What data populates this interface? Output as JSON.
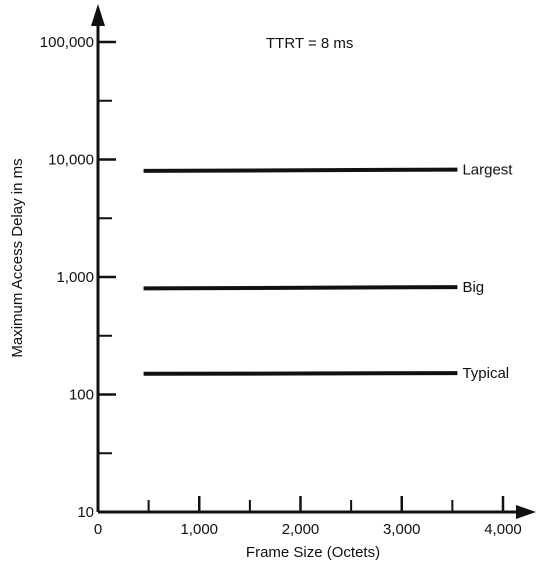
{
  "chart_data": {
    "type": "line",
    "title": "",
    "annotation": "TTRT = 8 ms",
    "xlabel": "Frame Size (Octets)",
    "ylabel": "Maximum Access Delay in ms",
    "y_scale": "log",
    "xlim": [
      0,
      4500
    ],
    "ylim": [
      10,
      100000
    ],
    "x_ticks": [
      0,
      1000,
      2000,
      3000,
      4000
    ],
    "x_tick_labels": [
      "0",
      "1,000",
      "2,000",
      "3,000",
      "4,000"
    ],
    "y_ticks": [
      10,
      100,
      1000,
      10000,
      100000
    ],
    "y_tick_labels": [
      "10",
      "100",
      "1,000",
      "10,000",
      "100,000"
    ],
    "grid": false,
    "series": [
      {
        "name": "Largest",
        "x": [
          450,
          3550
        ],
        "y": [
          8000,
          8200
        ]
      },
      {
        "name": "Big",
        "x": [
          450,
          3550
        ],
        "y": [
          800,
          820
        ]
      },
      {
        "name": "Typical",
        "x": [
          450,
          3550
        ],
        "y": [
          150,
          152
        ]
      }
    ],
    "colors": {
      "ink": "#111111",
      "background": "#ffffff"
    }
  }
}
